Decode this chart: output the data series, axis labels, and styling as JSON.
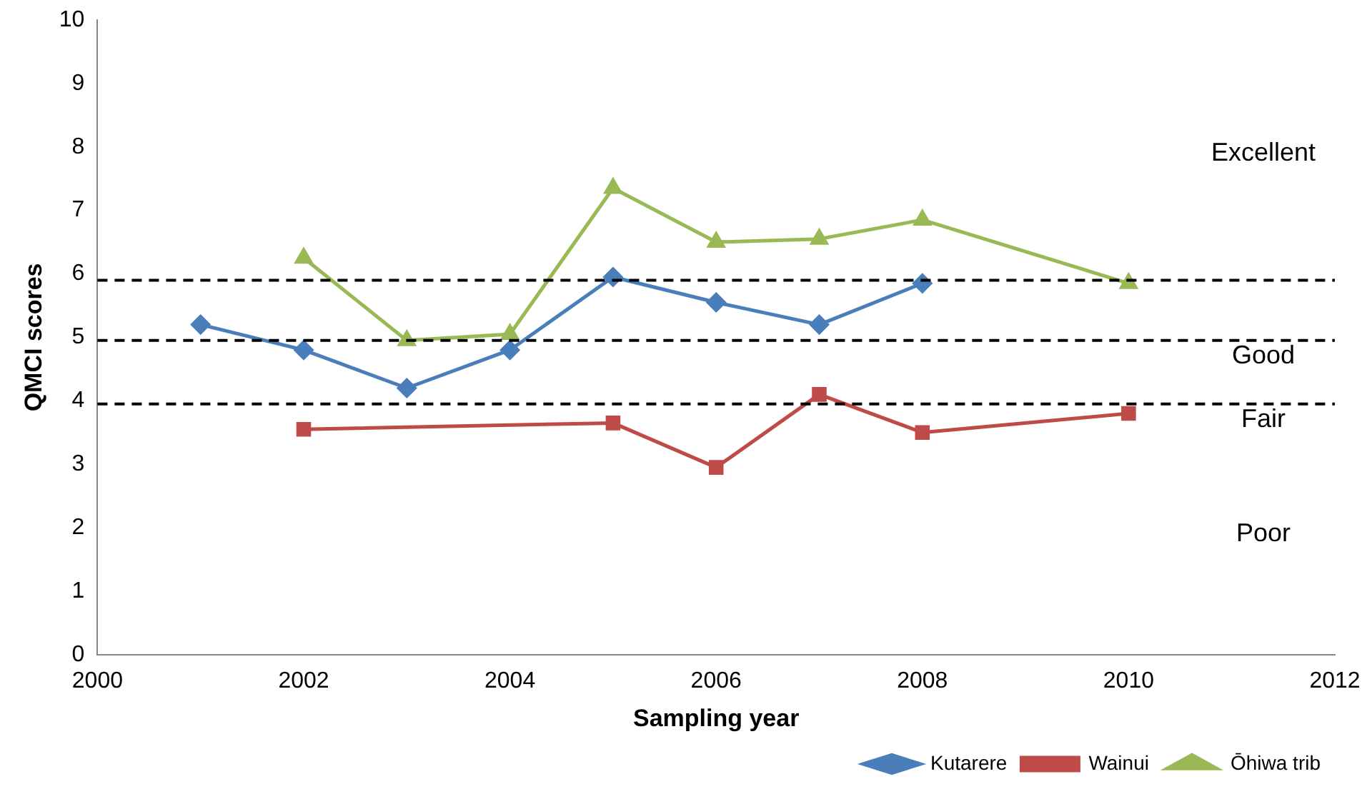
{
  "chart_data": {
    "type": "line",
    "xlabel": "Sampling year",
    "ylabel": "QMCI scores",
    "xlim": [
      2000,
      2012
    ],
    "xticks": [
      2000,
      2002,
      2004,
      2006,
      2008,
      2010,
      2012
    ],
    "ylim": [
      0,
      10
    ],
    "yticks": [
      0,
      1,
      2,
      3,
      4,
      5,
      6,
      7,
      8,
      9,
      10
    ],
    "grid": false,
    "legend": "bottom right",
    "line_style": "solid",
    "series": [
      {
        "name": "Kutarere",
        "color": "#4a7ebb",
        "marker": "diamond",
        "x": [
          2001,
          2002,
          2003,
          2004,
          2005,
          2006,
          2007,
          2008
        ],
        "values": [
          5.2,
          4.8,
          4.2,
          4.8,
          5.95,
          5.55,
          5.2,
          5.85
        ]
      },
      {
        "name": "Wainui",
        "color": "#be4b48",
        "marker": "square",
        "x": [
          2002,
          2005,
          2006,
          2007,
          2008,
          2010
        ],
        "values": [
          3.55,
          3.65,
          2.95,
          4.1,
          3.5,
          3.8
        ]
      },
      {
        "name": "Ōhiwa trib",
        "color": "#98b954",
        "marker": "triangle",
        "x": [
          2002,
          2003,
          2004,
          2005,
          2006,
          2007,
          2008,
          2010
        ],
        "values": [
          6.25,
          4.95,
          5.05,
          7.35,
          6.5,
          6.55,
          6.85,
          5.85
        ]
      }
    ],
    "ref_lines": [
      {
        "axis": "y",
        "value": 5.9,
        "color": "#000000",
        "line_style": "dashed"
      },
      {
        "axis": "y",
        "value": 4.95,
        "color": "#000000",
        "line_style": "dashed"
      },
      {
        "axis": "y",
        "value": 3.95,
        "color": "#000000",
        "line_style": "dashed"
      }
    ],
    "annotations": [
      "Excellent",
      "Good",
      "Fair",
      "Poor"
    ]
  }
}
